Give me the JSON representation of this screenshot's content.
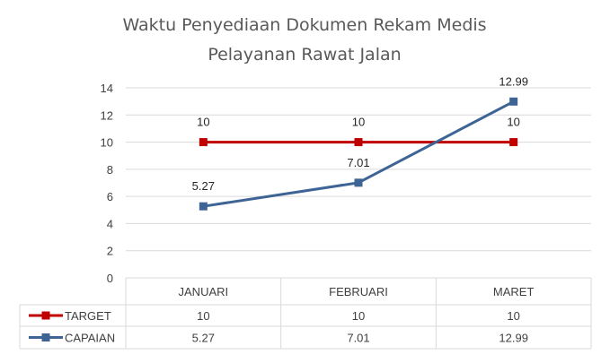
{
  "chart_data": {
    "type": "line",
    "title_lines": [
      "Waktu Penyediaan Dokumen Rekam Medis",
      "Pelayanan Rawat Jalan"
    ],
    "categories": [
      "JANUARI",
      "FEBRUARI",
      "MARET"
    ],
    "series": [
      {
        "name": "TARGET",
        "values": [
          10,
          10,
          10
        ],
        "color": "#c00000"
      },
      {
        "name": "CAPAIAN",
        "values": [
          5.27,
          7.01,
          12.99
        ],
        "color": "#3d6494"
      }
    ],
    "y_ticks": [
      "0",
      "2",
      "4",
      "6",
      "8",
      "10",
      "12",
      "14"
    ],
    "ylim": [
      0,
      14
    ],
    "data_labels": {
      "TARGET": [
        "10",
        "10",
        "10"
      ],
      "CAPAIAN": [
        "5.27",
        "7.01",
        "12.99"
      ]
    },
    "table_cells": {
      "TARGET": [
        "10",
        "10",
        "10"
      ],
      "CAPAIAN": [
        "5.27",
        "7.01",
        "12.99"
      ]
    },
    "grid": true,
    "legend": "data-table"
  }
}
